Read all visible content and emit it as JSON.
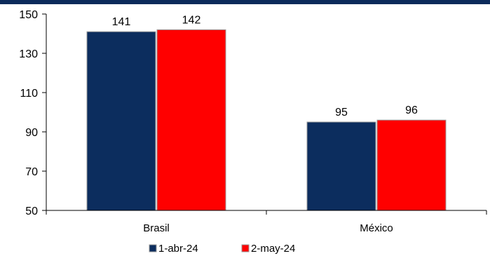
{
  "theme": {
    "top_rule_color": "#0b2a5b",
    "axis_color": "#000000"
  },
  "chart_data": {
    "type": "bar",
    "title": "",
    "xlabel": "",
    "ylabel": "",
    "categories": [
      "Brasil",
      "México"
    ],
    "ylim": [
      50,
      150
    ],
    "yticks": [
      50,
      70,
      90,
      110,
      130,
      150
    ],
    "grid": false,
    "legend_position": "bottom",
    "series": [
      {
        "name": "1-abr-24",
        "values": [
          141,
          95
        ],
        "color": "#0c2d5e"
      },
      {
        "name": "2-may-24",
        "values": [
          142,
          96
        ],
        "color": "#ff0000"
      }
    ]
  }
}
